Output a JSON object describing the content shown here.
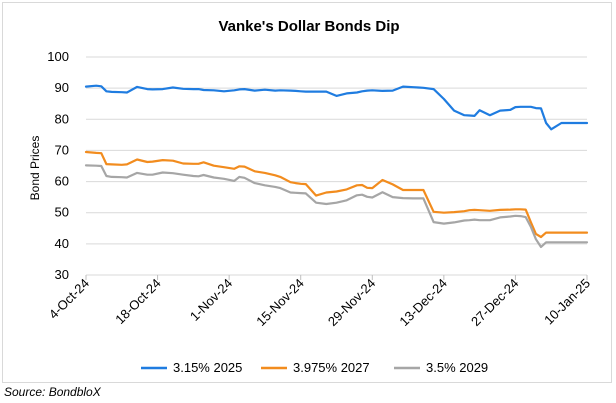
{
  "chart_data": {
    "type": "line",
    "title": "Vanke's Dollar Bonds Dip",
    "xlabel": "",
    "ylabel": "Bond Prices",
    "ylim": [
      30,
      100
    ],
    "yticks": [
      "30",
      "40",
      "50",
      "60",
      "70",
      "80",
      "90",
      "100"
    ],
    "xticks": [
      "4-Oct-24",
      "18-Oct-24",
      "1-Nov-24",
      "15-Nov-24",
      "29-Nov-24",
      "13-Dec-24",
      "27-Dec-24",
      "10-Jan-25"
    ],
    "grid": true,
    "legend_position": "bottom",
    "series": [
      {
        "name": "3.15% 2025",
        "color": "#1f7ce0",
        "x": [
          0,
          2,
          3,
          4,
          5,
          7,
          8,
          10,
          12,
          13,
          15,
          17,
          19,
          21,
          22,
          23,
          25,
          27,
          29,
          30,
          31,
          33,
          35,
          37,
          38,
          40,
          41,
          42,
          43,
          45,
          47,
          49,
          51,
          53,
          54,
          55,
          56,
          58,
          60,
          62,
          64,
          65,
          66,
          68,
          70,
          72,
          74,
          75,
          76,
          77,
          79,
          81,
          83,
          84,
          85,
          86,
          87,
          88,
          89,
          90,
          91,
          93,
          94,
          95,
          96,
          97,
          98
        ],
        "y": [
          90.5,
          90.8,
          90.6,
          89,
          88.8,
          88.7,
          88.6,
          90.4,
          89.7,
          89.6,
          89.7,
          90.2,
          89.8,
          89.7,
          89.7,
          89.4,
          89.3,
          89,
          89.3,
          89.6,
          89.7,
          89.2,
          89.5,
          89.2,
          89.3,
          89.2,
          89.1,
          89,
          88.9,
          88.9,
          88.9,
          87.5,
          88.3,
          88.6,
          89,
          89.2,
          89.3,
          89.1,
          89.2,
          90.5,
          90.3,
          90.2,
          90.1,
          89.7,
          86.5,
          82.8,
          81.3,
          81.2,
          81.1,
          82.9,
          81.3,
          82.8,
          83,
          83.9,
          84,
          84,
          84,
          83.6,
          83.5,
          78.8,
          76.8,
          78.8,
          78.8,
          78.8,
          78.8,
          78.8,
          78.8
        ]
      },
      {
        "name": "3.975% 2027",
        "color": "#f28c1e",
        "x": [
          0,
          2,
          3,
          4,
          5,
          7,
          8,
          10,
          12,
          13,
          15,
          17,
          19,
          21,
          22,
          23,
          25,
          27,
          29,
          30,
          31,
          33,
          35,
          37,
          38,
          40,
          41,
          42,
          43,
          45,
          47,
          49,
          51,
          53,
          54,
          55,
          56,
          58,
          60,
          62,
          64,
          65,
          66,
          68,
          70,
          72,
          74,
          75,
          76,
          77,
          79,
          81,
          83,
          84,
          85,
          86,
          87,
          88,
          89,
          90,
          91,
          93,
          94,
          95,
          96,
          97,
          98
        ],
        "y": [
          69.5,
          69.2,
          69.1,
          65.6,
          65.5,
          65.4,
          65.5,
          67.1,
          66.3,
          66.4,
          66.9,
          66.7,
          65.8,
          65.7,
          65.7,
          66.2,
          65.1,
          64.6,
          64.1,
          64.9,
          64.8,
          63.3,
          62.8,
          62,
          61.5,
          59.8,
          59.5,
          59.3,
          59.2,
          55.5,
          56.5,
          56.8,
          57.5,
          58.8,
          58.9,
          58,
          57.9,
          60.5,
          59.1,
          57.3,
          57.3,
          57.3,
          57.3,
          50.3,
          50,
          50.2,
          50.5,
          50.8,
          50.9,
          50.8,
          50.6,
          50.9,
          51,
          51.1,
          51.1,
          51,
          47,
          43.2,
          42.2,
          43.6,
          43.6,
          43.6,
          43.6,
          43.6,
          43.6,
          43.6,
          43.6
        ]
      },
      {
        "name": "3.5% 2029",
        "color": "#a6a6a6",
        "x": [
          0,
          2,
          3,
          4,
          5,
          7,
          8,
          10,
          12,
          13,
          15,
          17,
          19,
          21,
          22,
          23,
          25,
          27,
          29,
          30,
          31,
          33,
          35,
          37,
          38,
          40,
          41,
          42,
          43,
          45,
          47,
          49,
          51,
          53,
          54,
          55,
          56,
          58,
          60,
          62,
          64,
          65,
          66,
          68,
          70,
          72,
          74,
          75,
          76,
          77,
          79,
          81,
          83,
          84,
          85,
          86,
          87,
          88,
          89,
          90,
          91,
          93,
          94,
          95,
          96,
          97,
          98
        ],
        "y": [
          65.2,
          65.1,
          65,
          61.8,
          61.5,
          61.4,
          61.3,
          62.8,
          62.2,
          62.2,
          62.9,
          62.7,
          62.2,
          61.8,
          61.7,
          62.1,
          61.3,
          60.9,
          60.2,
          61.5,
          61.2,
          59.5,
          58.8,
          58.3,
          57.9,
          56.5,
          56.4,
          56.3,
          56.2,
          53.2,
          52.8,
          53.2,
          54,
          55.6,
          55.8,
          55.1,
          54.9,
          56.6,
          55,
          54.7,
          54.6,
          54.6,
          54.6,
          47,
          46.5,
          46.9,
          47.5,
          47.6,
          47.8,
          47.6,
          47.6,
          48.5,
          48.8,
          49,
          48.9,
          48.6,
          45.5,
          41.5,
          39,
          40.5,
          40.5,
          40.5,
          40.5,
          40.5,
          40.5,
          40.5,
          40.5
        ]
      }
    ]
  },
  "source": "Source: BondbloX"
}
